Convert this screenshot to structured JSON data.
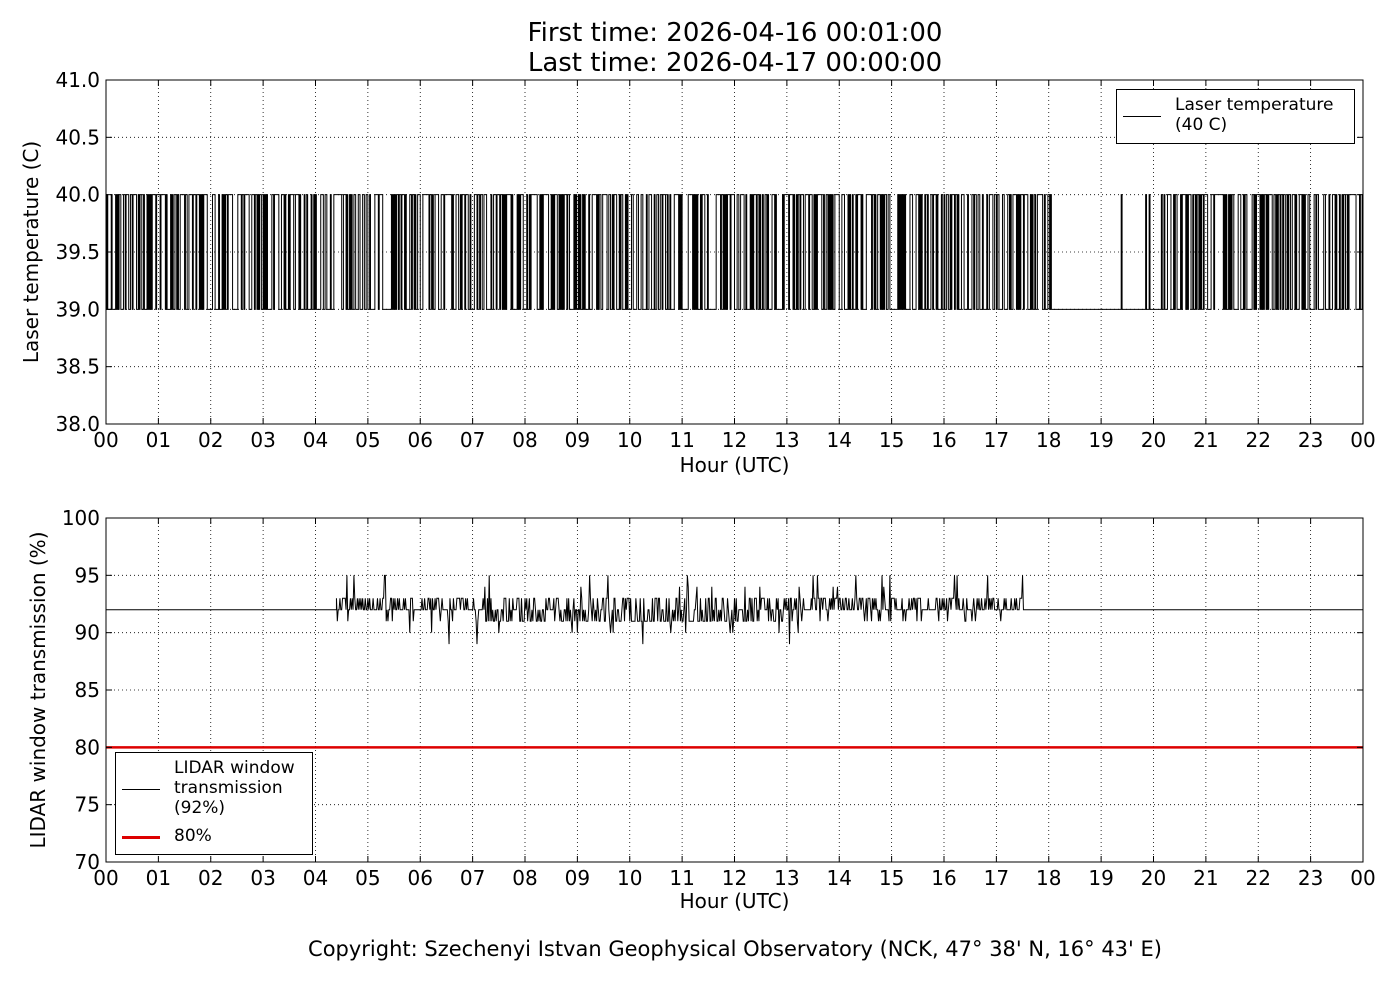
{
  "title": {
    "line1": "First time: 2026-04-16 00:01:00",
    "line2": "Last time: 2026-04-17 00:00:00"
  },
  "copyright": "Copyright: Szechenyi Istvan Geophysical Observatory (NCK, 47° 38' N, 16° 43' E)",
  "chart_data": [
    {
      "type": "line",
      "ylabel": "Laser temperature (C)",
      "xlabel": "Hour (UTC)",
      "xlim": [
        0,
        24
      ],
      "ylim": [
        38.0,
        41.0
      ],
      "x_ticks": [
        "00",
        "01",
        "02",
        "03",
        "04",
        "05",
        "06",
        "07",
        "08",
        "09",
        "10",
        "11",
        "12",
        "13",
        "14",
        "15",
        "16",
        "17",
        "18",
        "19",
        "20",
        "21",
        "22",
        "23",
        "00"
      ],
      "y_ticks": [
        "38.0",
        "38.5",
        "39.0",
        "39.5",
        "40.0",
        "40.5",
        "41.0"
      ],
      "grid": true,
      "legend_position": "upper-right",
      "series": [
        {
          "name": "Laser temperature\n(40 C)",
          "color": "#000000",
          "values_range": [
            39.0,
            40.0
          ],
          "segments": [
            {
              "x_start": 0.0,
              "x_end": 1.4,
              "pattern": "toggle",
              "low": 39.0,
              "high": 40.0
            },
            {
              "x_start": 1.4,
              "x_end": 1.95,
              "pattern": "toggle-sparse",
              "low": 39.0,
              "high": 40.0
            },
            {
              "x_start": 1.95,
              "x_end": 18.1,
              "pattern": "toggle",
              "low": 39.0,
              "high": 40.0
            },
            {
              "x_start": 18.1,
              "x_end": 20.15,
              "pattern": "mostly-low",
              "low": 39.0,
              "high": 40.0
            },
            {
              "x_start": 20.15,
              "x_end": 24.0,
              "pattern": "toggle",
              "low": 39.0,
              "high": 40.0
            }
          ]
        }
      ]
    },
    {
      "type": "line",
      "ylabel": "LIDAR window transmission (%)",
      "xlabel": "Hour (UTC)",
      "xlim": [
        0,
        24
      ],
      "ylim": [
        70,
        100
      ],
      "x_ticks": [
        "00",
        "01",
        "02",
        "03",
        "04",
        "05",
        "06",
        "07",
        "08",
        "09",
        "10",
        "11",
        "12",
        "13",
        "14",
        "15",
        "16",
        "17",
        "18",
        "19",
        "20",
        "21",
        "22",
        "23",
        "00"
      ],
      "y_ticks": [
        "70",
        "75",
        "80",
        "85",
        "90",
        "95",
        "100"
      ],
      "grid": true,
      "legend_position": "lower-left",
      "series": [
        {
          "name": "LIDAR window\ntransmission\n(92%)",
          "color": "#000000",
          "baseline": 92,
          "noisy_range": [
            4.4,
            17.55
          ],
          "max": 95,
          "min": 89
        },
        {
          "name": "80%",
          "color": "#dd0000",
          "constant": 80
        }
      ]
    }
  ]
}
